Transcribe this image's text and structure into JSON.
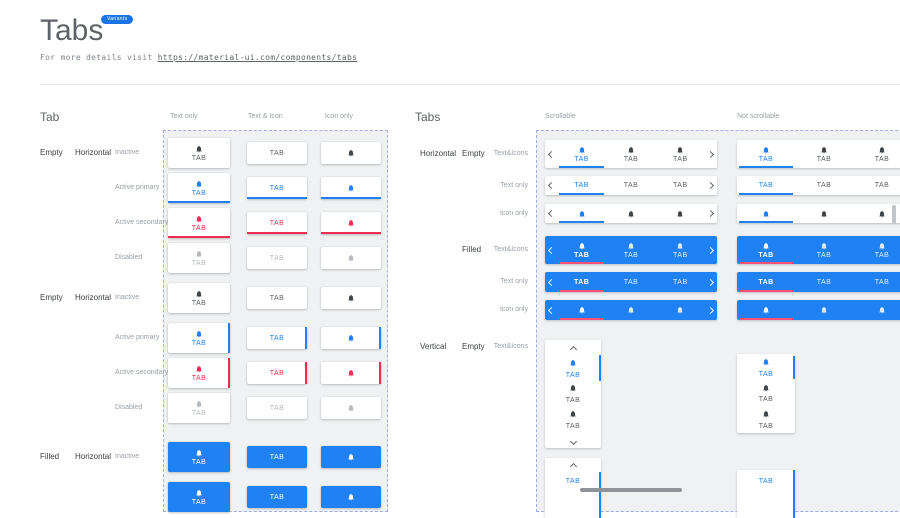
{
  "page": {
    "title": "Tabs",
    "badge": "Variants",
    "subtitle_prefix": "For more details visit ",
    "subtitle_link": "https://material-ui.com/components/tabs"
  },
  "labels": {
    "tab": "TAB"
  },
  "colors": {
    "primary": "#2082F2",
    "secondary": "#EF2D52",
    "filled_indicator": "#FA4D78",
    "inactive_icon": "#3F4549",
    "inactive_text": "#5A5F63",
    "disabled": "#B6BABF",
    "chevron": "#5f6368"
  },
  "left": {
    "heading": "Tab",
    "columns": [
      "Text only",
      "Text & Icon",
      "Icon only"
    ],
    "groups": [
      {
        "fill": "Empty",
        "orientation": "Horizontal",
        "rows": [
          "Inactive",
          "Active primary",
          "Active secondary",
          "Disabled"
        ]
      },
      {
        "fill": "Empty",
        "orientation": "Horizontal",
        "rows": [
          "Inactive",
          "Active primary",
          "Active secondary",
          "Disabled"
        ]
      },
      {
        "fill": "Filled",
        "orientation": "Horizontal",
        "rows": [
          "Inactive",
          ""
        ]
      }
    ]
  },
  "right": {
    "heading": "Tabs",
    "columns": [
      "Scrollable",
      "Not scrollable"
    ],
    "groups": [
      {
        "orientation": "Horizontal",
        "fill": "Empty",
        "rows": [
          "Text&Icons",
          "Text only",
          "Icon only"
        ]
      },
      {
        "orientation": "",
        "fill": "Filled",
        "rows": [
          "Text&Icons",
          "Text only",
          "Icon only"
        ]
      },
      {
        "orientation": "Vertical",
        "fill": "Empty",
        "rows": [
          "Text&Icons",
          ""
        ]
      }
    ]
  }
}
